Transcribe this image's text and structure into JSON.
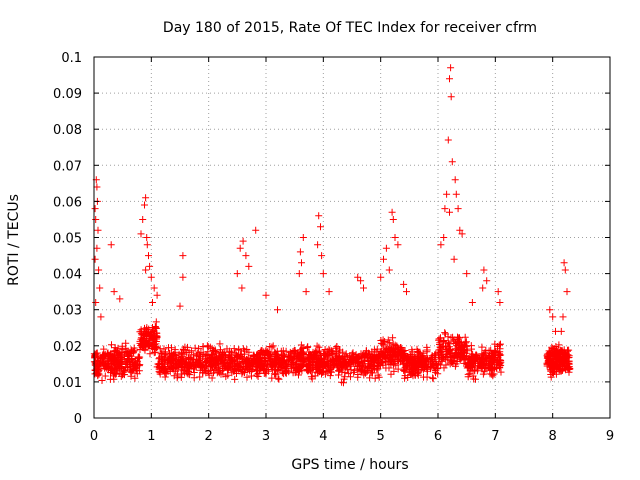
{
  "chart_data": {
    "type": "scatter",
    "title": "Day 180 of 2015, Rate Of TEC Index for receiver cfrm",
    "xlabel": "GPS time / hours",
    "ylabel": "ROTI / TECUs",
    "xlim": [
      0,
      9
    ],
    "ylim": [
      0,
      0.1
    ],
    "xticks": [
      "0",
      "1",
      "2",
      "3",
      "4",
      "5",
      "6",
      "7",
      "8",
      "9"
    ],
    "yticks": [
      "0",
      "0.01",
      "0.02",
      "0.03",
      "0.04",
      "0.05",
      "0.06",
      "0.07",
      "0.08",
      "0.09",
      "0.1"
    ],
    "grid": true,
    "marker": "+",
    "color": "#ff0000",
    "series": [
      {
        "name": "ROTI",
        "points": [
          [
            0.02,
            0.058
          ],
          [
            0.04,
            0.066
          ],
          [
            0.05,
            0.064
          ],
          [
            0.03,
            0.055
          ],
          [
            0.06,
            0.06
          ],
          [
            0.07,
            0.052
          ],
          [
            0.05,
            0.047
          ],
          [
            0.02,
            0.044
          ],
          [
            0.08,
            0.041
          ],
          [
            0.1,
            0.036
          ],
          [
            0.03,
            0.032
          ],
          [
            0.12,
            0.028
          ],
          [
            0.3,
            0.048
          ],
          [
            0.35,
            0.035
          ],
          [
            0.45,
            0.033
          ],
          [
            0.82,
            0.051
          ],
          [
            0.85,
            0.055
          ],
          [
            0.88,
            0.059
          ],
          [
            0.9,
            0.061
          ],
          [
            0.92,
            0.05
          ],
          [
            0.95,
            0.045
          ],
          [
            0.97,
            0.042
          ],
          [
            1.0,
            0.039
          ],
          [
            1.05,
            0.036
          ],
          [
            0.9,
            0.041
          ],
          [
            0.93,
            0.048
          ],
          [
            1.02,
            0.032
          ],
          [
            1.1,
            0.034
          ],
          [
            1.55,
            0.045
          ],
          [
            1.55,
            0.039
          ],
          [
            1.5,
            0.031
          ],
          [
            2.55,
            0.047
          ],
          [
            2.6,
            0.049
          ],
          [
            2.5,
            0.04
          ],
          [
            2.65,
            0.045
          ],
          [
            2.7,
            0.042
          ],
          [
            2.58,
            0.036
          ],
          [
            2.82,
            0.052
          ],
          [
            3.0,
            0.034
          ],
          [
            3.2,
            0.03
          ],
          [
            3.6,
            0.046
          ],
          [
            3.62,
            0.043
          ],
          [
            3.65,
            0.05
          ],
          [
            3.58,
            0.04
          ],
          [
            3.7,
            0.035
          ],
          [
            3.92,
            0.056
          ],
          [
            3.95,
            0.053
          ],
          [
            3.9,
            0.048
          ],
          [
            3.97,
            0.045
          ],
          [
            4.0,
            0.04
          ],
          [
            4.1,
            0.035
          ],
          [
            4.6,
            0.039
          ],
          [
            4.65,
            0.038
          ],
          [
            4.7,
            0.036
          ],
          [
            5.0,
            0.039
          ],
          [
            5.05,
            0.044
          ],
          [
            5.1,
            0.047
          ],
          [
            5.2,
            0.057
          ],
          [
            5.22,
            0.055
          ],
          [
            5.25,
            0.05
          ],
          [
            5.3,
            0.048
          ],
          [
            5.15,
            0.041
          ],
          [
            5.4,
            0.037
          ],
          [
            5.45,
            0.035
          ],
          [
            6.05,
            0.048
          ],
          [
            6.1,
            0.05
          ],
          [
            6.12,
            0.058
          ],
          [
            6.15,
            0.062
          ],
          [
            6.18,
            0.077
          ],
          [
            6.2,
            0.094
          ],
          [
            6.22,
            0.097
          ],
          [
            6.23,
            0.089
          ],
          [
            6.25,
            0.071
          ],
          [
            6.3,
            0.066
          ],
          [
            6.32,
            0.062
          ],
          [
            6.35,
            0.058
          ],
          [
            6.38,
            0.052
          ],
          [
            6.42,
            0.051
          ],
          [
            6.2,
            0.057
          ],
          [
            6.28,
            0.044
          ],
          [
            6.5,
            0.04
          ],
          [
            6.6,
            0.032
          ],
          [
            6.8,
            0.041
          ],
          [
            6.85,
            0.038
          ],
          [
            6.78,
            0.036
          ],
          [
            7.05,
            0.035
          ],
          [
            7.08,
            0.032
          ],
          [
            7.95,
            0.03
          ],
          [
            8.0,
            0.028
          ],
          [
            8.05,
            0.024
          ],
          [
            8.2,
            0.043
          ],
          [
            8.22,
            0.041
          ],
          [
            8.25,
            0.035
          ],
          [
            8.18,
            0.028
          ],
          [
            8.15,
            0.024
          ]
        ]
      }
    ]
  }
}
